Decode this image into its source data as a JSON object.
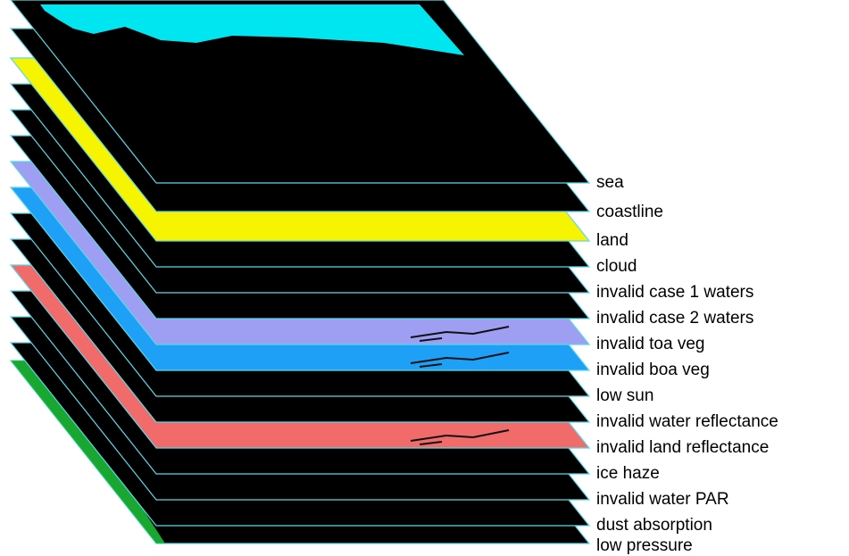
{
  "layers": [
    {
      "id": "sea",
      "label": "sea",
      "fill": "#000000"
    },
    {
      "id": "coastline",
      "label": "coastline",
      "fill": "#000000"
    },
    {
      "id": "land",
      "label": "land",
      "fill": "#f7f400"
    },
    {
      "id": "cloud",
      "label": "cloud",
      "fill": "#000000"
    },
    {
      "id": "invalid-case-1-waters",
      "label": "invalid case 1 waters",
      "fill": "#000000"
    },
    {
      "id": "invalid-case-2-waters",
      "label": "invalid case 2 waters",
      "fill": "#000000"
    },
    {
      "id": "invalid-toa-veg",
      "label": "invalid toa veg",
      "fill": "#9e9ef2"
    },
    {
      "id": "invalid-boa-veg",
      "label": "invalid boa veg",
      "fill": "#1fa0f7"
    },
    {
      "id": "low-sun",
      "label": "low sun",
      "fill": "#000000"
    },
    {
      "id": "invalid-water-reflectance",
      "label": "invalid water reflectance",
      "fill": "#000000"
    },
    {
      "id": "invalid-land-reflectance",
      "label": "invalid land reflectance",
      "fill": "#f26b6b"
    },
    {
      "id": "ice-haze",
      "label": "ice haze",
      "fill": "#000000"
    },
    {
      "id": "invalid-water-par",
      "label": "invalid water PAR",
      "fill": "#000000"
    },
    {
      "id": "dust-absorption",
      "label": "dust absorption",
      "fill": "#000000"
    },
    {
      "id": "low-pressure",
      "label": "low pressure",
      "fill": "#000000"
    }
  ],
  "colors": {
    "layer_edge": "#5ad8e8",
    "sea_cyan": "#00e6f0",
    "green_mask": "#1fc43a",
    "speckle": "#ffffff"
  }
}
